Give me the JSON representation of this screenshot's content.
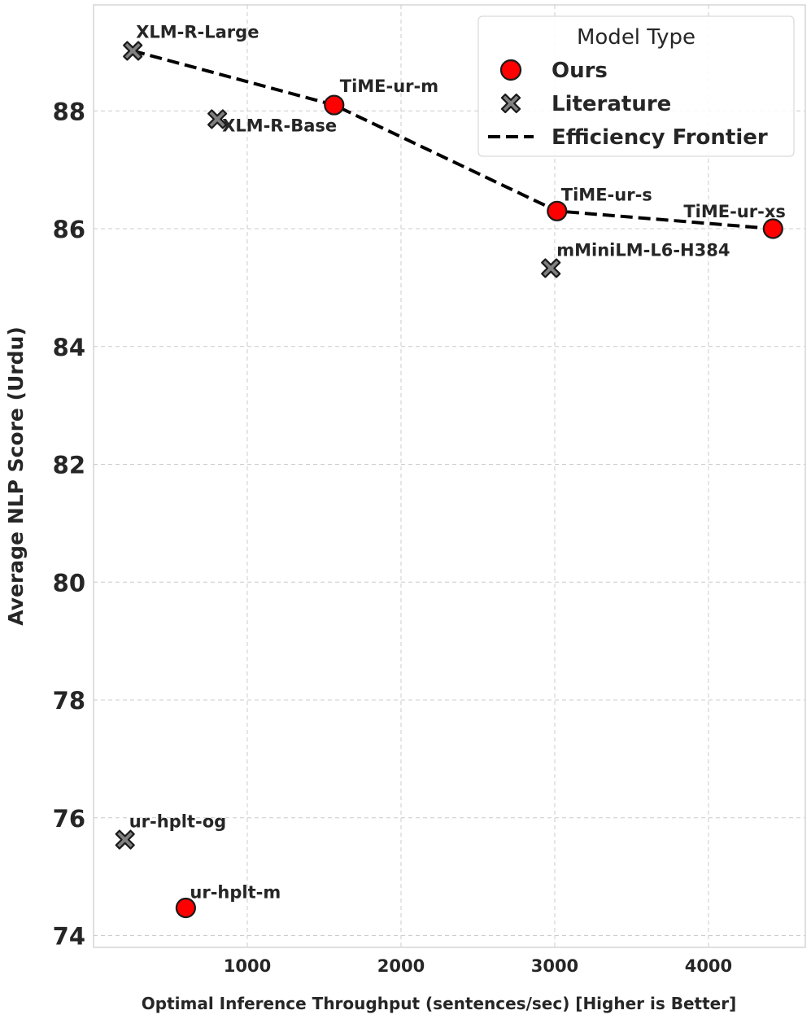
{
  "chart_data": {
    "type": "scatter",
    "title": "",
    "xlabel": "Optimal Inference Throughput (sentences/sec) [Higher is Better]",
    "ylabel": "Average NLP Score (Urdu)",
    "xlim": [
      0,
      4630
    ],
    "ylim": [
      73.8,
      89.8
    ],
    "xticks": [
      1000,
      2000,
      3000,
      4000
    ],
    "yticks": [
      74,
      76,
      78,
      80,
      82,
      84,
      86,
      88
    ],
    "grid": true,
    "legend": {
      "title": "Model Type",
      "placement": "top-right",
      "entries": [
        {
          "label": "Ours",
          "marker": "circle",
          "color": "#ff0000"
        },
        {
          "label": "Literature",
          "marker": "x",
          "color": "#808080"
        },
        {
          "label": "Efficiency Frontier",
          "marker": "dashed-line",
          "color": "#000000"
        }
      ]
    },
    "series": [
      {
        "name": "Ours",
        "marker": "circle",
        "color": "#ff0000",
        "points": [
          {
            "label": "TiME-ur-m",
            "x": 1565,
            "y": 88.1
          },
          {
            "label": "TiME-ur-s",
            "x": 3015,
            "y": 86.3
          },
          {
            "label": "TiME-ur-xs",
            "x": 4420,
            "y": 86.0
          },
          {
            "label": "ur-hplt-m",
            "x": 600,
            "y": 74.47
          }
        ]
      },
      {
        "name": "Literature",
        "marker": "x",
        "color": "#808080",
        "points": [
          {
            "label": "XLM-R-Large",
            "x": 255,
            "y": 89.02
          },
          {
            "label": "XLM-R-Base",
            "x": 805,
            "y": 87.86
          },
          {
            "label": "mMiniLM-L6-H384",
            "x": 2975,
            "y": 85.33
          },
          {
            "label": "ur-hplt-og",
            "x": 205,
            "y": 75.63
          }
        ]
      },
      {
        "name": "Efficiency Frontier",
        "type": "line",
        "style": "dashed",
        "color": "#000000",
        "points": [
          {
            "x": 255,
            "y": 89.02
          },
          {
            "x": 1565,
            "y": 88.1
          },
          {
            "x": 3015,
            "y": 86.3
          },
          {
            "x": 4420,
            "y": 86.0
          }
        ]
      }
    ]
  }
}
